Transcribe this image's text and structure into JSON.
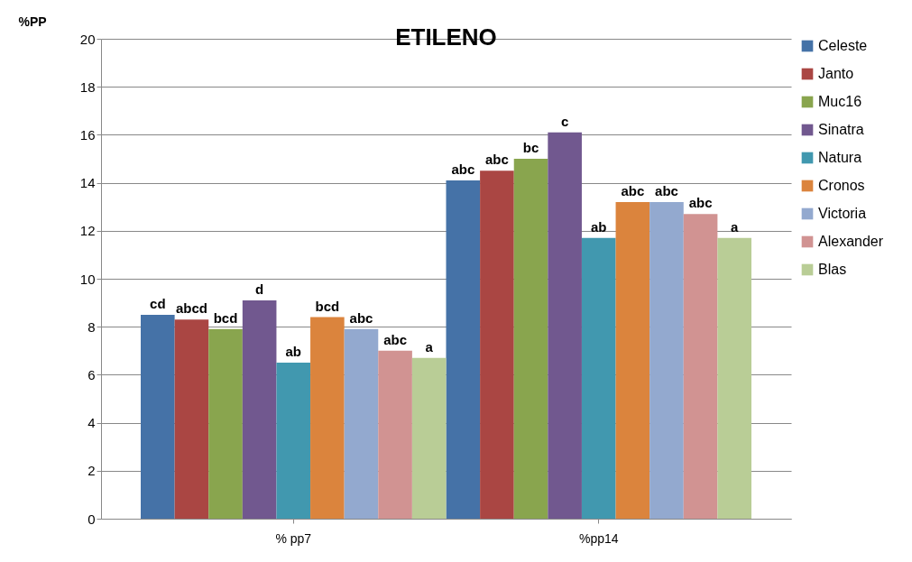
{
  "chart_data": {
    "type": "bar",
    "title": "ETILENO",
    "ylabel": "%PP",
    "categories": [
      "% pp7",
      "%pp14"
    ],
    "ylim": [
      0,
      20
    ],
    "yticks": [
      0,
      2,
      4,
      6,
      8,
      10,
      12,
      14,
      16,
      18,
      20
    ],
    "grid": "y",
    "legend": "right",
    "series": [
      {
        "name": "Celeste",
        "color": "#4572a7",
        "values": [
          8.5,
          14.1
        ],
        "value_labels": [
          "cd",
          "abc"
        ]
      },
      {
        "name": "Janto",
        "color": "#aa4643",
        "values": [
          8.3,
          14.5
        ],
        "value_labels": [
          "abcd",
          "abc"
        ]
      },
      {
        "name": "Muc16",
        "color": "#89a54e",
        "values": [
          7.9,
          15.0
        ],
        "value_labels": [
          "bcd",
          "bc"
        ]
      },
      {
        "name": "Sinatra",
        "color": "#71588f",
        "values": [
          9.1,
          16.1
        ],
        "value_labels": [
          "d",
          "c"
        ]
      },
      {
        "name": "Natura",
        "color": "#4198af",
        "values": [
          6.5,
          11.7
        ],
        "value_labels": [
          "ab",
          "ab"
        ]
      },
      {
        "name": "Cronos",
        "color": "#db843d",
        "values": [
          8.4,
          13.2
        ],
        "value_labels": [
          "bcd",
          "abc"
        ]
      },
      {
        "name": "Victoria",
        "color": "#93a9cf",
        "values": [
          7.9,
          13.2
        ],
        "value_labels": [
          "abc",
          "abc"
        ]
      },
      {
        "name": "Alexander",
        "color": "#d19392",
        "values": [
          7.0,
          12.7
        ],
        "value_labels": [
          "abc",
          "abc"
        ]
      },
      {
        "name": "Blas",
        "color": "#b9cd96",
        "values": [
          6.7,
          11.7
        ],
        "value_labels": [
          "a",
          "a"
        ]
      }
    ]
  }
}
